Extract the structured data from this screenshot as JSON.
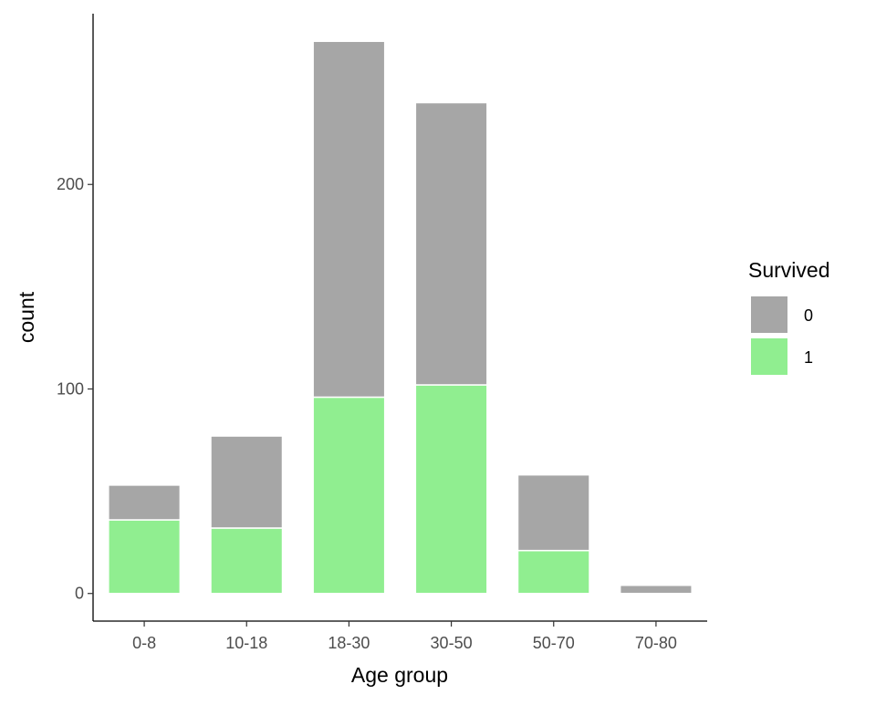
{
  "chart_data": {
    "type": "bar",
    "stacked": true,
    "categories": [
      "0-8",
      "10-18",
      "18-30",
      "30-50",
      "50-70",
      "70-80"
    ],
    "series": [
      {
        "name": "0",
        "values": [
          17,
          45,
          174,
          138,
          37,
          4
        ]
      },
      {
        "name": "1",
        "values": [
          36,
          32,
          96,
          102,
          21,
          0
        ]
      }
    ],
    "colors": {
      "0": "#a6a6a6",
      "1": "#90ee90"
    },
    "title": "",
    "xlabel": "Age group",
    "ylabel": "count",
    "ylim": [
      -13.5,
      283.5
    ],
    "yticks": [
      0,
      100,
      200
    ],
    "grid": false,
    "legend": {
      "title": "Survived",
      "position": "right",
      "entries": [
        "0",
        "1"
      ]
    }
  }
}
